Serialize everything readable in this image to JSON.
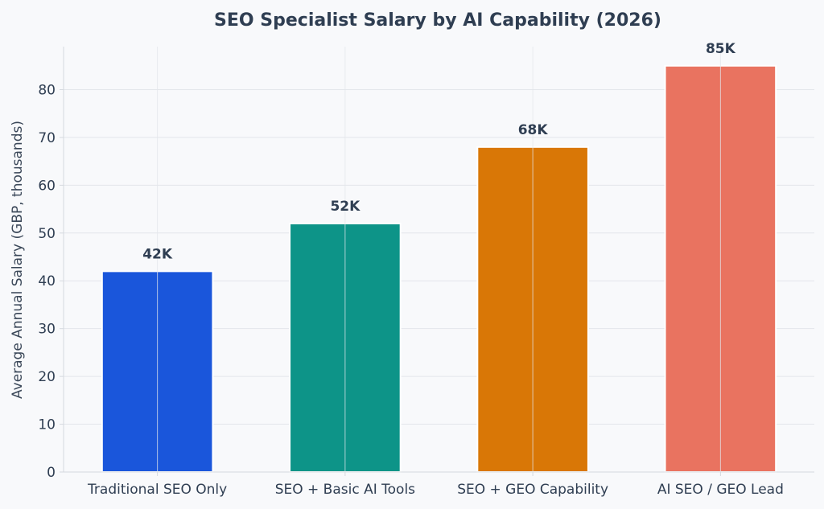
{
  "chart_data": {
    "type": "bar",
    "title": "SEO Specialist Salary by AI Capability (2026)",
    "xlabel": "",
    "ylabel": "Average Annual Salary (GBP, thousands)",
    "categories": [
      "Traditional SEO Only",
      "SEO + Basic AI Tools",
      "SEO + GEO Capability",
      "AI SEO / GEO Lead"
    ],
    "values": [
      42,
      52,
      68,
      85
    ],
    "data_labels": [
      "42K",
      "52K",
      "68K",
      "85K"
    ],
    "bar_colors": [
      "#1a56db",
      "#0d9488",
      "#d97706",
      "#e97360"
    ],
    "ylim": [
      0,
      89
    ],
    "yticks": [
      0,
      10,
      20,
      30,
      40,
      50,
      60,
      70,
      80
    ],
    "grid": true,
    "legend": "none"
  }
}
